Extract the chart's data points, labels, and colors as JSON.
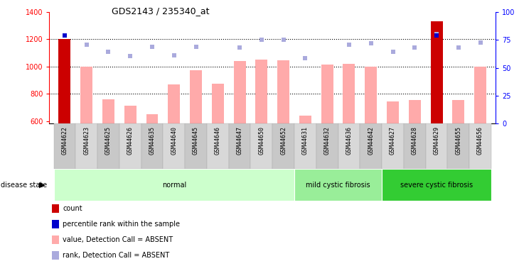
{
  "title": "GDS2143 / 235340_at",
  "samples": [
    "GSM44622",
    "GSM44623",
    "GSM44625",
    "GSM44626",
    "GSM44635",
    "GSM44640",
    "GSM44645",
    "GSM44646",
    "GSM44647",
    "GSM44650",
    "GSM44652",
    "GSM44631",
    "GSM44632",
    "GSM44636",
    "GSM44642",
    "GSM44627",
    "GSM44628",
    "GSM44629",
    "GSM44655",
    "GSM44656"
  ],
  "bar_values": [
    1200,
    1000,
    760,
    710,
    650,
    870,
    970,
    875,
    1040,
    1050,
    1045,
    640,
    1015,
    1020,
    1000,
    745,
    755,
    1330,
    755,
    1000
  ],
  "rank_dots": [
    1225,
    1160,
    1110,
    1075,
    1145,
    1080,
    1145,
    null,
    1140,
    1195,
    1195,
    1060,
    null,
    1160,
    1170,
    1110,
    1140,
    1240,
    1140,
    1175
  ],
  "bar_colors_dark": [
    true,
    false,
    false,
    false,
    false,
    false,
    false,
    false,
    false,
    false,
    false,
    false,
    false,
    false,
    false,
    false,
    false,
    true,
    false,
    false
  ],
  "percentile_dots": [
    79,
    null,
    null,
    null,
    null,
    null,
    null,
    null,
    null,
    null,
    null,
    null,
    null,
    null,
    null,
    null,
    null,
    79,
    null,
    null
  ],
  "disease_groups": [
    {
      "label": "normal",
      "start": 0,
      "end": 10,
      "color": "#ccffcc"
    },
    {
      "label": "mild cystic fibrosis",
      "start": 11,
      "end": 14,
      "color": "#99ee99"
    },
    {
      "label": "severe cystic fibrosis",
      "start": 15,
      "end": 19,
      "color": "#33cc33"
    }
  ],
  "ylim_left": [
    580,
    1400
  ],
  "ylim_right": [
    0,
    100
  ],
  "yticks_left": [
    600,
    800,
    1000,
    1200,
    1400
  ],
  "yticks_right": [
    0,
    25,
    50,
    75,
    100
  ],
  "hlines": [
    800,
    1000,
    1200
  ],
  "bar_color_normal": "#ffaaaa",
  "bar_color_dark": "#cc0000",
  "dot_color_rank": "#aaaadd",
  "dot_color_percentile": "#0000cc",
  "xticklabels_bg": "#cccccc",
  "legend_items": [
    {
      "label": "count",
      "color": "#cc0000"
    },
    {
      "label": "percentile rank within the sample",
      "color": "#0000cc"
    },
    {
      "label": "value, Detection Call = ABSENT",
      "color": "#ffaaaa"
    },
    {
      "label": "rank, Detection Call = ABSENT",
      "color": "#aaaadd"
    }
  ]
}
